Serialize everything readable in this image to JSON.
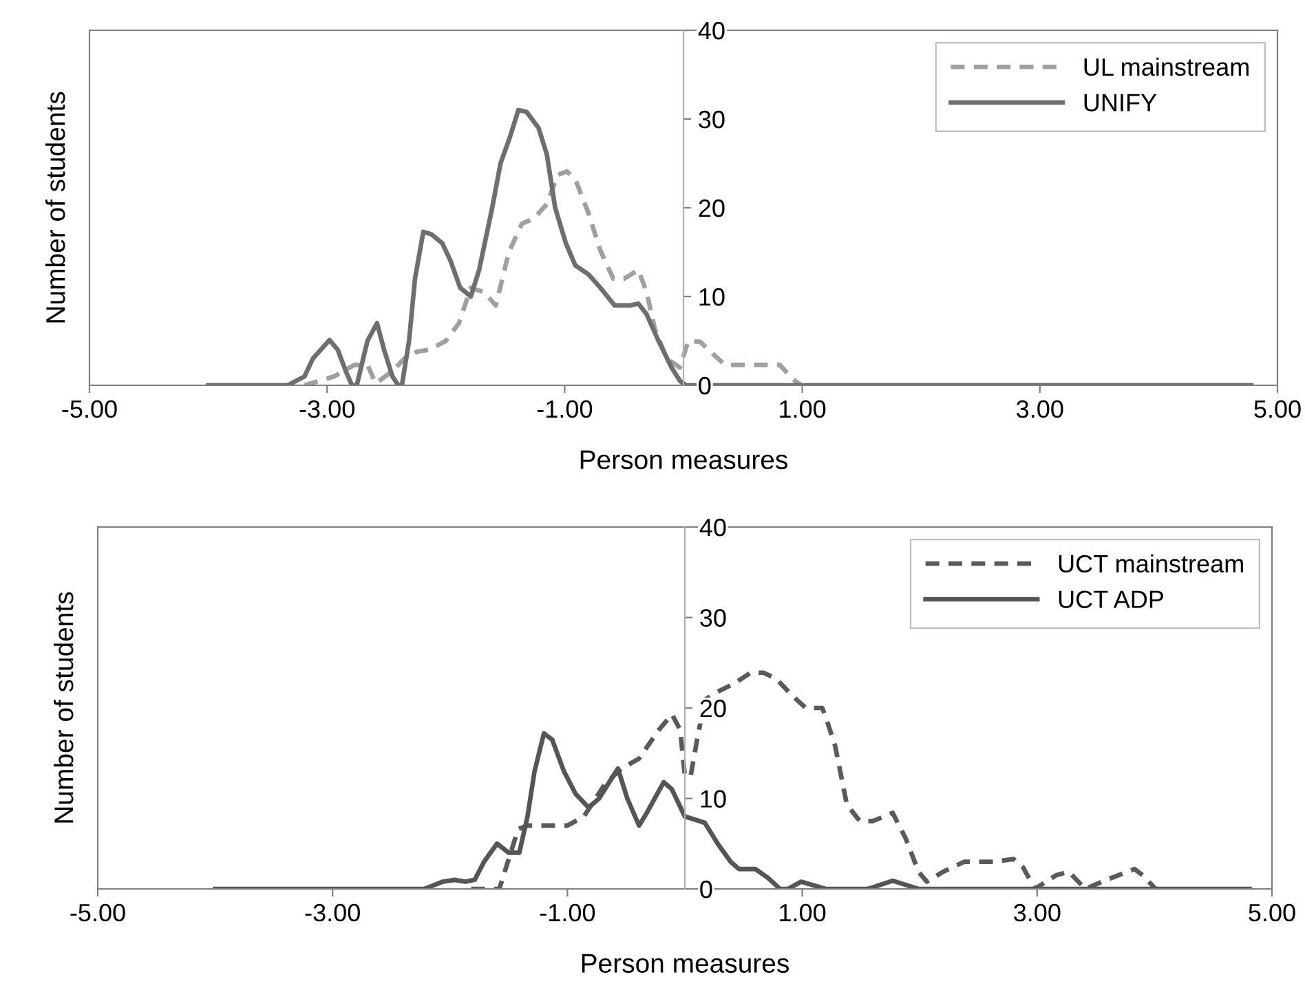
{
  "chart_data": [
    {
      "type": "line",
      "xlabel": "Person measures",
      "ylabel": "Number of students",
      "xlim": [
        -5,
        5
      ],
      "ylim": [
        0,
        40
      ],
      "xticks": [
        {
          "value": -5,
          "label": "-5.00"
        },
        {
          "value": -3,
          "label": "-3.00"
        },
        {
          "value": -1,
          "label": "-1.00"
        },
        {
          "value": 1,
          "label": "1.00"
        },
        {
          "value": 3,
          "label": "3.00"
        },
        {
          "value": 5,
          "label": "5.00"
        }
      ],
      "yticks": [
        0,
        10,
        20,
        30,
        40
      ],
      "legend": "top right",
      "series": [
        {
          "name": "UL mainstream",
          "color": "#a0a0a0",
          "line_style": "dashed",
          "x": [
            -3.19,
            -2.94,
            -2.77,
            -2.66,
            -2.59,
            -2.45,
            -2.35,
            -2.24,
            -2.14,
            -2.0,
            -1.89,
            -1.79,
            -1.68,
            -1.58,
            -1.47,
            -1.36,
            -1.26,
            -1.15,
            -1.06,
            -0.98,
            -0.91,
            -0.8,
            -0.7,
            -0.59,
            -0.5,
            -0.38,
            -0.31,
            -0.24,
            -0.14,
            -0.03,
            0.04,
            0.14,
            0.25,
            0.35,
            0.81,
            0.92,
            0.99
          ],
          "values": [
            0,
            1,
            2.3,
            2.3,
            0.2,
            1.6,
            3,
            3.8,
            4,
            5,
            7,
            11,
            10.5,
            9,
            15,
            18.2,
            18.8,
            20.4,
            23.7,
            24.1,
            23.2,
            19.4,
            15.2,
            12,
            12,
            13,
            10.5,
            6.3,
            3,
            2,
            5,
            4.9,
            3.5,
            2.3,
            2.3,
            0.7,
            0
          ]
        },
        {
          "name": "UNIFY",
          "color": "#6e6e6e",
          "line_style": "solid",
          "x": [
            -4.0,
            -3.33,
            -3.19,
            -3.12,
            -2.98,
            -2.91,
            -2.84,
            -2.79,
            -2.75,
            -2.66,
            -2.58,
            -2.52,
            -2.45,
            -2.4,
            -2.37,
            -2.31,
            -2.26,
            -2.19,
            -2.12,
            -2.03,
            -1.96,
            -1.88,
            -1.79,
            -1.72,
            -1.61,
            -1.54,
            -1.46,
            -1.39,
            -1.32,
            -1.22,
            -1.15,
            -1.08,
            -0.99,
            -0.91,
            -0.8,
            -0.7,
            -0.58,
            -0.45,
            -0.38,
            -0.31,
            -0.21,
            -0.1,
            -0.03,
            0.02,
            4.78
          ],
          "values": [
            0,
            0,
            1,
            3,
            5.1,
            4,
            1.5,
            0,
            0,
            5,
            7,
            4,
            1,
            0,
            0,
            5,
            12,
            17.3,
            17,
            16,
            14,
            11,
            10,
            13,
            20,
            25,
            28,
            31,
            30.8,
            29,
            26,
            20,
            16,
            13.5,
            12.5,
            11,
            9,
            9,
            9.2,
            8,
            5,
            2,
            0.5,
            0,
            0
          ]
        }
      ]
    },
    {
      "type": "line",
      "xlabel": "Person measures",
      "ylabel": "Number of students",
      "xlim": [
        -5,
        5
      ],
      "ylim": [
        0,
        40
      ],
      "xticks": [
        {
          "value": -5,
          "label": "-5.00"
        },
        {
          "value": -3,
          "label": "-3.00"
        },
        {
          "value": -1,
          "label": "-1.00"
        },
        {
          "value": 1,
          "label": "1.00"
        },
        {
          "value": 3,
          "label": "3.00"
        },
        {
          "value": 5,
          "label": "5.00"
        }
      ],
      "yticks": [
        0,
        10,
        20,
        30,
        40
      ],
      "legend": "top right",
      "series": [
        {
          "name": "UCT mainstream",
          "color": "#5a5a5a",
          "line_style": "dashed",
          "x": [
            -1.82,
            -1.58,
            -1.42,
            -1.34,
            -1.0,
            -0.86,
            -0.68,
            -0.54,
            -0.39,
            -0.22,
            -0.11,
            -0.04,
            0.0,
            0.05,
            0.1,
            0.17,
            0.28,
            0.42,
            0.56,
            0.67,
            0.78,
            0.92,
            1.03,
            1.17,
            1.2,
            1.28,
            1.38,
            1.49,
            1.6,
            1.77,
            1.88,
            1.99,
            2.06,
            2.2,
            2.38,
            2.63,
            2.8,
            2.88,
            2.98,
            3.16,
            3.27,
            3.41,
            3.59,
            3.83,
            3.9,
            4.01
          ],
          "values": [
            0,
            0,
            6.6,
            7,
            7,
            8,
            11.6,
            13.3,
            14.4,
            17.6,
            19.3,
            17.6,
            12.5,
            12.5,
            16.2,
            20.9,
            21.8,
            22.7,
            23.9,
            23.9,
            23.2,
            21.3,
            20,
            20,
            19,
            15.8,
            9.3,
            7.5,
            7.5,
            8.4,
            5.6,
            1.9,
            0.8,
            1.9,
            3,
            3,
            3.3,
            2.4,
            0,
            1.5,
            1.9,
            0,
            1,
            2.2,
            1.5,
            0
          ]
        },
        {
          "name": "UCT ADP",
          "color": "#555555",
          "line_style": "solid",
          "x": [
            -4.0,
            -2.22,
            -2.06,
            -1.96,
            -1.87,
            -1.79,
            -1.71,
            -1.6,
            -1.5,
            -1.41,
            -1.34,
            -1.28,
            -1.2,
            -1.13,
            -1.03,
            -0.93,
            -0.82,
            -0.73,
            -0.61,
            -0.57,
            -0.49,
            -0.39,
            -0.32,
            -0.18,
            -0.11,
            0.0,
            0.1,
            0.17,
            0.28,
            0.39,
            0.46,
            0.6,
            0.71,
            0.81,
            0.88,
            0.99,
            1.2,
            1.56,
            1.77,
            1.99,
            4.81
          ],
          "values": [
            0,
            0,
            0.8,
            1,
            0.8,
            1,
            3,
            5,
            4,
            4,
            8,
            13,
            17.2,
            16.5,
            13,
            10.5,
            9,
            10,
            12.5,
            13.3,
            10,
            7,
            8.5,
            11.8,
            11,
            8,
            7.6,
            7.3,
            5,
            3,
            2.2,
            2.2,
            1.2,
            0,
            0,
            0.8,
            0,
            0,
            0.9,
            0,
            0
          ]
        }
      ]
    }
  ]
}
